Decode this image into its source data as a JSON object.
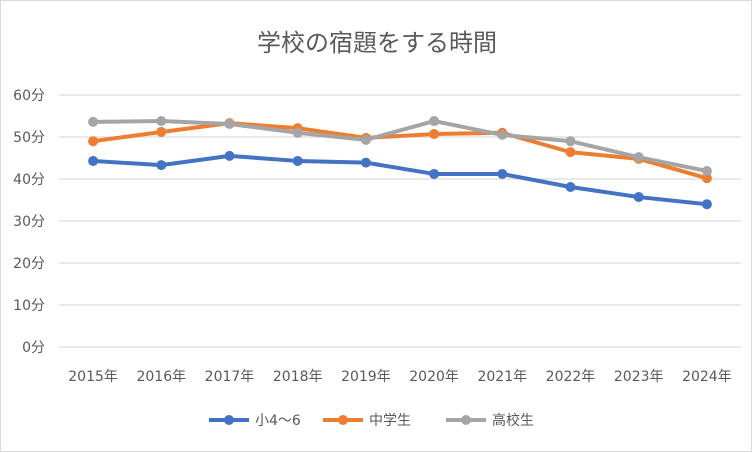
{
  "chart_data": {
    "type": "line",
    "title": "学校の宿題をする時間",
    "xlabel": "",
    "ylabel": "",
    "categories": [
      "2015年",
      "2016年",
      "2017年",
      "2018年",
      "2019年",
      "2020年",
      "2021年",
      "2022年",
      "2023年",
      "2024年"
    ],
    "y_ticks": [
      "0分",
      "10分",
      "20分",
      "30分",
      "40分",
      "50分",
      "60分"
    ],
    "ylim": [
      0,
      60
    ],
    "grid": true,
    "legend_position": "bottom",
    "series": [
      {
        "name": "小4〜6",
        "color": "#4472c4",
        "values": [
          44.3,
          43.3,
          45.5,
          44.3,
          43.9,
          41.2,
          41.2,
          38.1,
          35.7,
          34.0
        ]
      },
      {
        "name": "中学生",
        "color": "#ed7d31",
        "values": [
          49.0,
          51.2,
          53.3,
          52.1,
          49.8,
          50.7,
          51.0,
          46.4,
          44.8,
          40.2
        ]
      },
      {
        "name": "高校生",
        "color": "#a5a5a5",
        "values": [
          53.6,
          53.8,
          53.1,
          51.0,
          49.3,
          53.8,
          50.5,
          49.0,
          45.2,
          41.9
        ]
      }
    ]
  }
}
